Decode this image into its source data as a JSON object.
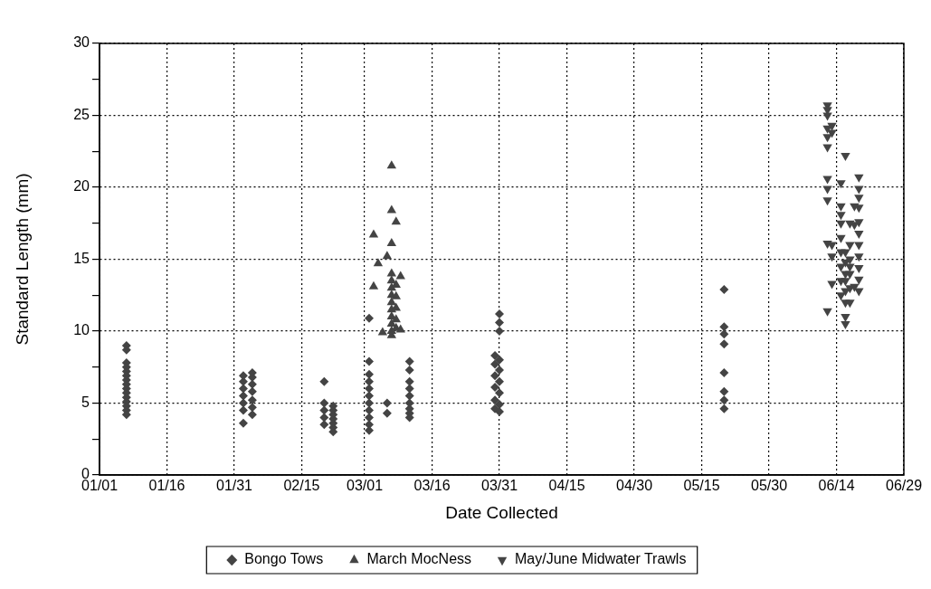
{
  "chart_data": {
    "type": "scatter",
    "xlabel": "Date Collected",
    "ylabel": "Standard Length (mm)",
    "xlim": [
      "--01-01",
      "--06-29"
    ],
    "xticks": [
      {
        "value": "--01-01",
        "label": "01/01"
      },
      {
        "value": "--01-16",
        "label": "01/16"
      },
      {
        "value": "--01-31",
        "label": "01/31"
      },
      {
        "value": "--02-15",
        "label": "02/15"
      },
      {
        "value": "--03-01",
        "label": "03/01"
      },
      {
        "value": "--03-16",
        "label": "03/16"
      },
      {
        "value": "--03-31",
        "label": "03/31"
      },
      {
        "value": "--04-15",
        "label": "04/15"
      },
      {
        "value": "--04-30",
        "label": "04/30"
      },
      {
        "value": "--05-15",
        "label": "05/15"
      },
      {
        "value": "--05-30",
        "label": "05/30"
      },
      {
        "value": "--06-14",
        "label": "06/14"
      },
      {
        "value": "--06-29",
        "label": "06/29"
      }
    ],
    "ylim": [
      0,
      30
    ],
    "yticks": [
      0,
      {
        "value": 2.5,
        "label": null
      },
      5,
      {
        "value": 7.5,
        "label": null
      },
      10,
      {
        "value": 12.5,
        "label": null
      },
      15,
      {
        "value": 17.5,
        "label": null
      },
      20,
      {
        "value": 22.5,
        "label": null
      },
      25,
      {
        "value": 27.5,
        "label": null
      },
      30
    ],
    "grid": true,
    "legend": "bottom",
    "series": [
      {
        "name": "Bongo Tows",
        "color": "#444444",
        "marker": "diamond",
        "x": [
          "--01-07",
          "--01-07",
          "--01-07",
          "--01-07",
          "--01-07",
          "--01-07",
          "--01-07",
          "--01-07",
          "--01-07",
          "--01-07",
          "--01-07",
          "--01-07",
          "--01-07",
          "--01-07",
          "--01-07",
          "--02-02",
          "--02-02",
          "--02-02",
          "--02-02",
          "--02-02",
          "--02-02",
          "--02-02",
          "--02-04",
          "--02-04",
          "--02-04",
          "--02-04",
          "--02-04",
          "--02-04",
          "--02-04",
          "--02-20",
          "--02-20",
          "--02-20",
          "--02-20",
          "--02-20",
          "--02-22",
          "--02-22",
          "--02-22",
          "--02-22",
          "--02-22",
          "--02-22",
          "--02-22",
          "--03-02",
          "--03-02",
          "--03-02",
          "--03-02",
          "--03-02",
          "--03-02",
          "--03-02",
          "--03-02",
          "--03-02",
          "--03-02",
          "--03-02",
          "--03-06",
          "--03-06",
          "--03-11",
          "--03-11",
          "--03-11",
          "--03-11",
          "--03-11",
          "--03-11",
          "--03-11",
          "--03-11",
          "--03-11",
          "--03-30",
          "--03-30",
          "--03-30",
          "--03-30",
          "--03-30",
          "--03-30",
          "--03-31",
          "--03-31",
          "--03-31",
          "--03-31",
          "--03-31",
          "--03-31",
          "--03-31",
          "--03-31",
          "--03-31",
          "--05-20",
          "--05-20",
          "--05-20",
          "--05-20",
          "--05-20",
          "--05-20",
          "--05-20",
          "--05-20"
        ],
        "values": [
          9.0,
          8.7,
          7.8,
          7.5,
          7.2,
          6.9,
          6.6,
          6.3,
          6.0,
          5.7,
          5.4,
          5.1,
          4.8,
          4.5,
          4.2,
          3.6,
          4.5,
          5.0,
          5.5,
          6.0,
          6.5,
          6.9,
          4.2,
          4.7,
          5.2,
          5.8,
          6.3,
          6.8,
          7.1,
          6.5,
          5.0,
          4.5,
          4.0,
          3.5,
          3.0,
          3.3,
          3.6,
          3.9,
          4.2,
          4.5,
          4.8,
          10.9,
          7.9,
          7.0,
          6.5,
          6.0,
          5.5,
          5.0,
          4.5,
          4.0,
          3.5,
          3.1,
          5.0,
          4.3,
          7.9,
          7.3,
          6.5,
          6.0,
          5.5,
          5.0,
          4.6,
          4.3,
          4.0,
          8.3,
          7.7,
          6.9,
          6.1,
          5.2,
          4.6,
          11.2,
          10.6,
          10.0,
          8.0,
          7.3,
          6.5,
          5.7,
          4.9,
          4.4,
          12.9,
          10.3,
          9.8,
          9.1,
          7.1,
          5.8,
          5.2,
          4.6
        ]
      },
      {
        "name": "March MocNess",
        "color": "#444444",
        "marker": "triangle",
        "x": [
          "--03-07",
          "--03-07",
          "--03-07",
          "--03-07",
          "--03-07",
          "--03-07",
          "--03-07",
          "--03-07",
          "--03-07",
          "--03-07",
          "--03-07",
          "--03-07",
          "--03-07",
          "--03-08",
          "--03-08",
          "--03-08",
          "--03-08",
          "--03-08",
          "--03-08",
          "--03-03",
          "--03-03",
          "--03-06",
          "--03-04",
          "--03-09",
          "--03-09",
          "--03-05"
        ],
        "values": [
          21.5,
          18.4,
          16.1,
          14.0,
          13.5,
          13.0,
          12.5,
          12.0,
          11.5,
          11.0,
          10.5,
          10.0,
          9.7,
          17.6,
          13.2,
          12.4,
          11.6,
          10.8,
          10.2,
          16.7,
          13.1,
          15.2,
          14.7,
          13.8,
          10.1,
          9.9
        ]
      },
      {
        "name": "May/June Midwater Trawls",
        "color": "#444444",
        "marker": "triangle-down",
        "x": [
          "--06-12",
          "--06-12",
          "--06-12",
          "--06-12",
          "--06-12",
          "--06-12",
          "--06-12",
          "--06-12",
          "--06-12",
          "--06-12",
          "--06-12",
          "--06-13",
          "--06-13",
          "--06-13",
          "--06-13",
          "--06-13",
          "--06-15",
          "--06-15",
          "--06-15",
          "--06-15",
          "--06-15",
          "--06-15",
          "--06-15",
          "--06-15",
          "--06-15",
          "--06-16",
          "--06-16",
          "--06-16",
          "--06-16",
          "--06-16",
          "--06-16",
          "--06-16",
          "--06-16",
          "--06-16",
          "--06-17",
          "--06-17",
          "--06-17",
          "--06-17",
          "--06-17",
          "--06-17",
          "--06-17",
          "--06-19",
          "--06-19",
          "--06-19",
          "--06-19",
          "--06-19",
          "--06-19",
          "--06-19",
          "--06-19",
          "--06-19",
          "--06-19",
          "--06-19",
          "--06-18",
          "--06-18",
          "--06-18"
        ],
        "values": [
          25.7,
          25.4,
          25.0,
          24.1,
          23.5,
          22.8,
          20.6,
          19.9,
          19.1,
          16.1,
          11.4,
          24.3,
          23.8,
          16.0,
          15.2,
          13.3,
          20.3,
          18.7,
          18.1,
          17.5,
          16.5,
          15.5,
          14.5,
          13.5,
          12.5,
          22.2,
          15.5,
          14.8,
          14.0,
          13.5,
          12.8,
          12.0,
          11.0,
          10.5,
          17.5,
          16.0,
          15.0,
          14.5,
          14.0,
          13.0,
          12.0,
          20.7,
          19.9,
          19.3,
          18.6,
          17.6,
          16.8,
          16.0,
          15.2,
          14.4,
          13.6,
          12.8,
          18.7,
          17.4,
          13.1
        ]
      }
    ]
  }
}
